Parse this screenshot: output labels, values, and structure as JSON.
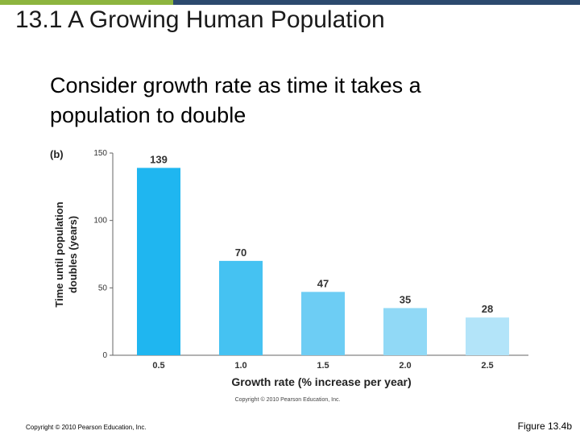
{
  "slide": {
    "title": "13.1 A Growing Human Population",
    "subtitle": "Consider growth rate as time it takes a population to double",
    "footer_copyright": "Copyright © 2010 Pearson Education, Inc.",
    "figure_label": "Figure 13.4b"
  },
  "colors": {
    "accent_green": "#8db53f",
    "accent_navy": "#2c4a6e"
  },
  "chart_data": {
    "type": "bar",
    "panel_label": "(b)",
    "categories": [
      "0.5",
      "1.0",
      "1.5",
      "2.0",
      "2.5"
    ],
    "values": [
      139,
      70,
      47,
      35,
      28
    ],
    "data_labels": [
      "139",
      "70",
      "47",
      "35",
      "28"
    ],
    "bar_colors": [
      "#1fb6f0",
      "#45c2f2",
      "#6dcdf4",
      "#91d9f6",
      "#b3e4f9"
    ],
    "xlabel": "Growth rate (% increase per year)",
    "ylabel_lines": [
      "Time until population",
      "doubles (years)"
    ],
    "ylim": [
      0,
      150
    ],
    "yticks": [
      0,
      50,
      100,
      150
    ],
    "copyright": "Copyright © 2010 Pearson Education, Inc.",
    "grid": false
  }
}
